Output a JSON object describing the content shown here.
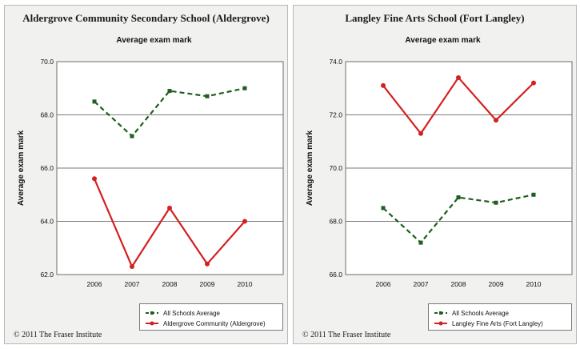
{
  "copyright": "© 2011 The Fraser Institute",
  "chart_data": [
    {
      "type": "line",
      "title": "Aldergrove Community Secondary School (Aldergrove)",
      "subtitle": "Average exam mark",
      "xlabel": "",
      "ylabel": "Average exam mark",
      "categories": [
        "2006",
        "2007",
        "2008",
        "2009",
        "2010"
      ],
      "ylim": [
        62.0,
        70.0
      ],
      "yticks": [
        "62.0",
        "64.0",
        "66.0",
        "68.0",
        "70.0"
      ],
      "grid": true,
      "legend_position": "bottom-right",
      "series": [
        {
          "name": "All Schools Average",
          "values": [
            68.5,
            67.2,
            68.9,
            68.7,
            69.0
          ],
          "color": "#1f5e1f",
          "dashed": true
        },
        {
          "name": "Aldergrove Community (Aldergrove)",
          "values": [
            65.6,
            62.3,
            64.5,
            62.4,
            64.0
          ],
          "color": "#d42020",
          "dashed": false
        }
      ]
    },
    {
      "type": "line",
      "title": "Langley Fine Arts School (Fort Langley)",
      "subtitle": "Average exam mark",
      "xlabel": "",
      "ylabel": "Average exam mark",
      "categories": [
        "2006",
        "2007",
        "2008",
        "2009",
        "2010"
      ],
      "ylim": [
        66.0,
        74.0
      ],
      "yticks": [
        "66.0",
        "68.0",
        "70.0",
        "72.0",
        "74.0"
      ],
      "grid": true,
      "legend_position": "bottom-right",
      "series": [
        {
          "name": "All Schools Average",
          "values": [
            68.5,
            67.2,
            68.9,
            68.7,
            69.0
          ],
          "color": "#1f5e1f",
          "dashed": true
        },
        {
          "name": "Langley Fine Arts  (Fort Langley)",
          "values": [
            73.1,
            71.3,
            73.4,
            71.8,
            73.2
          ],
          "color": "#d42020",
          "dashed": false
        }
      ]
    }
  ]
}
